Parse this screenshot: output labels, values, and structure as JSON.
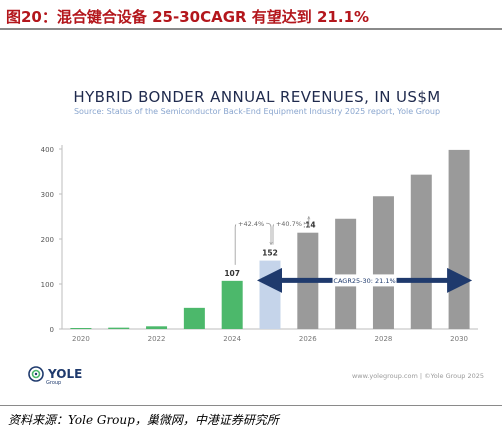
{
  "figure_title": "图20：混合键合设备 25-30CAGR 有望达到 21.1%",
  "chart_title": "HYBRID BONDER ANNUAL REVENUES, IN US$M",
  "chart_subtitle": "Source: Status of the Semiconductor Back-End Equipment Industry 2025 report, Yole Group",
  "logo": {
    "name": "YOLE",
    "sub": "Group",
    "icon": "yole-swirl-icon"
  },
  "website": "www.yolegroup.com | ©Yole Group 2025",
  "source_note": "资料来源：Yole Group，巢微网，中港证券研究所",
  "colors": {
    "title_red": "#b3161c",
    "green": "#4cb86b",
    "light_blue": "#c5d4ea",
    "gray": "#9a9a9a",
    "navy": "#1f3a6d"
  },
  "chart_data": {
    "type": "bar",
    "categories": [
      "2020",
      "2021",
      "2022",
      "2023",
      "2024",
      "2025",
      "2026",
      "2027",
      "2028",
      "2029",
      "2030"
    ],
    "values": [
      1,
      3,
      6,
      47,
      107,
      152,
      214,
      245,
      295,
      343,
      398
    ],
    "bar_colors": [
      "#4cb86b",
      "#4cb86b",
      "#4cb86b",
      "#4cb86b",
      "#4cb86b",
      "#c5d4ea",
      "#9a9a9a",
      "#9a9a9a",
      "#9a9a9a",
      "#9a9a9a",
      "#9a9a9a"
    ],
    "data_labels": {
      "2024": "107",
      "2025": "152",
      "2026": "214"
    },
    "x_tick_labels": [
      "2020",
      "2022",
      "2024",
      "2026",
      "2028",
      "2030"
    ],
    "y_ticks": [
      0,
      100,
      200,
      300,
      400
    ],
    "ylim": [
      0,
      400
    ],
    "grid": false,
    "annotations": [
      {
        "text": "+42.4%",
        "from": "2024",
        "to": "2025"
      },
      {
        "text": "+40.7%",
        "from": "2025",
        "to": "2026"
      },
      {
        "text": "CAGR25-30: 21.1%",
        "from": "2025",
        "to": "2030",
        "style": "double-arrow"
      }
    ],
    "title": "HYBRID BONDER ANNUAL REVENUES, IN US$M",
    "xlabel": "",
    "ylabel": ""
  }
}
